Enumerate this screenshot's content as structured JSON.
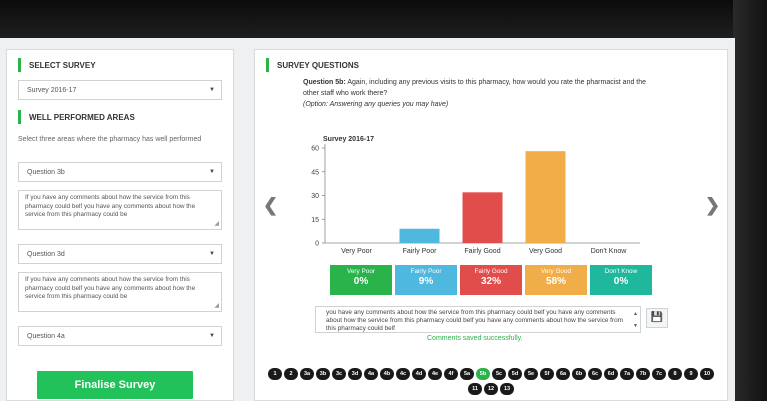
{
  "left": {
    "select_survey_title": "SELECT SURVEY",
    "survey_value": "Survey 2016-17",
    "well_performed_title": "WELL PERFORMED AREAS",
    "well_performed_help": "Select three areas where the pharmacy has well performed",
    "areas": [
      {
        "question": "Question 3b",
        "comment": "If you have any comments about how the service from this pharmacy could belf you have any comments about how the service from this pharmacy could be"
      },
      {
        "question": "Question 3d",
        "comment": "If you have any comments about how the service from this pharmacy could belf you have any comments about how the service from this pharmacy could be"
      },
      {
        "question": "Question 4a"
      }
    ],
    "finalise_label": "Finalise Survey"
  },
  "right": {
    "title": "SURVEY QUESTIONS",
    "question_label": "Question 5b:",
    "question_text": "Again, including any previous visits to this pharmacy, how would you rate the pharmacist and the other staff who work there?",
    "option_note": "(Option: Answering any queries you may have)",
    "comment_text": "you have any comments about how the service from this pharmacy could belf you have any comments about how the service from this pharmacy could belf you have any comments about how the service from this pharmacy could belf",
    "saved_message": "Comments saved successfully.",
    "prev_icon": "chevron-left-icon",
    "next_icon": "chevron-right-icon",
    "save_icon": "floppy-disk-icon"
  },
  "chart_data": {
    "type": "bar",
    "title": "Survey 2016-17",
    "categories": [
      "Very Poor",
      "Fairly Poor",
      "Fairly Good",
      "Very Good",
      "Don't Know"
    ],
    "values": [
      0,
      9,
      32,
      58,
      0
    ],
    "colors": [
      "#2ab24b",
      "#4fb8de",
      "#e04d4b",
      "#f1ad48",
      "#1fb89c"
    ],
    "ylim": [
      0,
      60
    ],
    "yticks": [
      0,
      15,
      30,
      45,
      60
    ],
    "grid": false
  },
  "tiles": [
    {
      "label": "Very Poor",
      "pct": "0%",
      "color": "#2ab24b"
    },
    {
      "label": "Fairly Poor",
      "pct": "9%",
      "color": "#4fb8de"
    },
    {
      "label": "Fairly Good",
      "pct": "32%",
      "color": "#e04d4b"
    },
    {
      "label": "Very Good",
      "pct": "58%",
      "color": "#f1ad48"
    },
    {
      "label": "Don't Know",
      "pct": "0%",
      "color": "#1fb89c"
    }
  ],
  "pager": {
    "items": [
      "1",
      "2",
      "3a",
      "3b",
      "3c",
      "3d",
      "4a",
      "4b",
      "4c",
      "4d",
      "4e",
      "4f",
      "5a",
      "5b",
      "5c",
      "5d",
      "5e",
      "5f",
      "6a",
      "6b",
      "6c",
      "6d",
      "7a",
      "7b",
      "7c",
      "8",
      "9",
      "10",
      "11",
      "12",
      "13"
    ],
    "active": "5b"
  }
}
